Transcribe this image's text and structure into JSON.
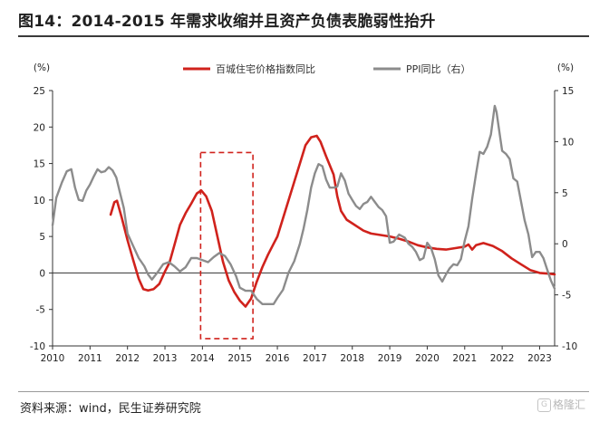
{
  "title": "图14：2014-2015 年需求收缩并且资产负债表脆弱性抬升",
  "source": "资料来源：wind，民生证券研究院",
  "watermark": "格隆汇",
  "chart_data": {
    "type": "line",
    "title": "图14：2014-2015 年需求收缩并且资产负债表脆弱性抬升",
    "x_ticks": [
      "2010",
      "2011",
      "2012",
      "2013",
      "2014",
      "2015",
      "2016",
      "2017",
      "2018",
      "2019",
      "2020",
      "2021",
      "2022",
      "2023"
    ],
    "y_left": {
      "unit": "(%)",
      "range": [
        -10,
        25
      ],
      "ticks": [
        "25",
        "20",
        "15",
        "10",
        "5",
        "0",
        "-5",
        "-10"
      ]
    },
    "y_right": {
      "unit": "(%)",
      "range": [
        -10,
        15
      ],
      "ticks": [
        "15",
        "10",
        "5",
        "0",
        "-5",
        "-10"
      ]
    },
    "series": [
      {
        "name": "百城住宅价格指数同比",
        "axis": "left",
        "color": "#d0221c",
        "points": [
          [
            2011.55,
            8.0
          ],
          [
            2011.65,
            9.7
          ],
          [
            2011.72,
            9.9
          ],
          [
            2011.85,
            7.5
          ],
          [
            2012.0,
            4.5
          ],
          [
            2012.15,
            1.8
          ],
          [
            2012.3,
            -0.8
          ],
          [
            2012.42,
            -2.2
          ],
          [
            2012.55,
            -2.4
          ],
          [
            2012.7,
            -2.2
          ],
          [
            2012.85,
            -1.5
          ],
          [
            2013.0,
            0.2
          ],
          [
            2013.12,
            1.4
          ],
          [
            2013.25,
            3.8
          ],
          [
            2013.4,
            6.6
          ],
          [
            2013.55,
            8.2
          ],
          [
            2013.7,
            9.5
          ],
          [
            2013.85,
            10.9
          ],
          [
            2013.97,
            11.3
          ],
          [
            2014.1,
            10.5
          ],
          [
            2014.25,
            8.5
          ],
          [
            2014.4,
            5.0
          ],
          [
            2014.55,
            1.5
          ],
          [
            2014.7,
            -1.0
          ],
          [
            2014.85,
            -2.6
          ],
          [
            2015.0,
            -3.8
          ],
          [
            2015.15,
            -4.6
          ],
          [
            2015.3,
            -3.5
          ],
          [
            2015.45,
            -1.2
          ],
          [
            2015.6,
            0.8
          ],
          [
            2015.75,
            2.5
          ],
          [
            2015.9,
            4.0
          ],
          [
            2016.0,
            5.0
          ],
          [
            2016.15,
            7.5
          ],
          [
            2016.3,
            10.0
          ],
          [
            2016.45,
            12.5
          ],
          [
            2016.6,
            15.0
          ],
          [
            2016.75,
            17.5
          ],
          [
            2016.9,
            18.6
          ],
          [
            2017.05,
            18.8
          ],
          [
            2017.15,
            18.0
          ],
          [
            2017.3,
            16.0
          ],
          [
            2017.5,
            13.5
          ],
          [
            2017.6,
            10.5
          ],
          [
            2017.7,
            8.5
          ],
          [
            2017.85,
            7.3
          ],
          [
            2018.0,
            6.8
          ],
          [
            2018.15,
            6.3
          ],
          [
            2018.3,
            5.8
          ],
          [
            2018.5,
            5.4
          ],
          [
            2018.75,
            5.2
          ],
          [
            2019.0,
            5.0
          ],
          [
            2019.25,
            4.7
          ],
          [
            2019.5,
            4.3
          ],
          [
            2019.75,
            3.8
          ],
          [
            2020.0,
            3.5
          ],
          [
            2020.25,
            3.3
          ],
          [
            2020.5,
            3.2
          ],
          [
            2020.75,
            3.4
          ],
          [
            2021.0,
            3.6
          ],
          [
            2021.1,
            3.9
          ],
          [
            2021.2,
            3.2
          ],
          [
            2021.3,
            3.8
          ],
          [
            2021.5,
            4.1
          ],
          [
            2021.75,
            3.7
          ],
          [
            2022.0,
            3.0
          ],
          [
            2022.25,
            2.0
          ],
          [
            2022.5,
            1.2
          ],
          [
            2022.75,
            0.4
          ],
          [
            2023.0,
            0.0
          ],
          [
            2023.25,
            -0.1
          ],
          [
            2023.4,
            -0.2
          ]
        ]
      },
      {
        "name": "PPI同比（右）",
        "axis": "right",
        "color": "#8c8c8c",
        "points": [
          [
            2010.0,
            1.8
          ],
          [
            2010.1,
            4.5
          ],
          [
            2010.25,
            6.0
          ],
          [
            2010.38,
            7.1
          ],
          [
            2010.5,
            7.3
          ],
          [
            2010.6,
            5.5
          ],
          [
            2010.7,
            4.3
          ],
          [
            2010.8,
            4.2
          ],
          [
            2010.9,
            5.2
          ],
          [
            2011.0,
            5.8
          ],
          [
            2011.1,
            6.6
          ],
          [
            2011.2,
            7.3
          ],
          [
            2011.3,
            7.0
          ],
          [
            2011.4,
            7.1
          ],
          [
            2011.5,
            7.5
          ],
          [
            2011.6,
            7.2
          ],
          [
            2011.7,
            6.5
          ],
          [
            2011.8,
            5.0
          ],
          [
            2011.9,
            3.5
          ],
          [
            2012.0,
            1.0
          ],
          [
            2012.15,
            -0.2
          ],
          [
            2012.3,
            -1.4
          ],
          [
            2012.45,
            -2.2
          ],
          [
            2012.55,
            -3.0
          ],
          [
            2012.65,
            -3.5
          ],
          [
            2012.8,
            -2.8
          ],
          [
            2012.95,
            -2.0
          ],
          [
            2013.1,
            -1.8
          ],
          [
            2013.25,
            -2.2
          ],
          [
            2013.4,
            -2.7
          ],
          [
            2013.55,
            -2.3
          ],
          [
            2013.7,
            -1.4
          ],
          [
            2013.85,
            -1.4
          ],
          [
            2014.0,
            -1.6
          ],
          [
            2014.15,
            -1.8
          ],
          [
            2014.3,
            -1.3
          ],
          [
            2014.45,
            -0.9
          ],
          [
            2014.6,
            -1.2
          ],
          [
            2014.75,
            -2.0
          ],
          [
            2014.9,
            -3.2
          ],
          [
            2015.0,
            -4.3
          ],
          [
            2015.15,
            -4.6
          ],
          [
            2015.3,
            -4.6
          ],
          [
            2015.45,
            -5.4
          ],
          [
            2015.6,
            -5.9
          ],
          [
            2015.75,
            -5.9
          ],
          [
            2015.9,
            -5.9
          ],
          [
            2016.0,
            -5.3
          ],
          [
            2016.15,
            -4.5
          ],
          [
            2016.3,
            -2.8
          ],
          [
            2016.45,
            -1.7
          ],
          [
            2016.6,
            0.0
          ],
          [
            2016.7,
            1.5
          ],
          [
            2016.8,
            3.3
          ],
          [
            2016.9,
            5.5
          ],
          [
            2017.0,
            6.9
          ],
          [
            2017.1,
            7.8
          ],
          [
            2017.2,
            7.6
          ],
          [
            2017.3,
            6.3
          ],
          [
            2017.4,
            5.5
          ],
          [
            2017.5,
            5.5
          ],
          [
            2017.6,
            5.6
          ],
          [
            2017.7,
            6.9
          ],
          [
            2017.8,
            6.2
          ],
          [
            2017.9,
            4.9
          ],
          [
            2018.0,
            4.3
          ],
          [
            2018.1,
            3.7
          ],
          [
            2018.2,
            3.4
          ],
          [
            2018.3,
            3.9
          ],
          [
            2018.4,
            4.1
          ],
          [
            2018.5,
            4.6
          ],
          [
            2018.6,
            4.1
          ],
          [
            2018.7,
            3.6
          ],
          [
            2018.8,
            3.3
          ],
          [
            2018.9,
            2.7
          ],
          [
            2019.0,
            0.1
          ],
          [
            2019.1,
            0.2
          ],
          [
            2019.25,
            0.9
          ],
          [
            2019.4,
            0.6
          ],
          [
            2019.5,
            0.0
          ],
          [
            2019.6,
            -0.3
          ],
          [
            2019.7,
            -0.8
          ],
          [
            2019.8,
            -1.6
          ],
          [
            2019.9,
            -1.4
          ],
          [
            2020.0,
            0.1
          ],
          [
            2020.1,
            -0.4
          ],
          [
            2020.2,
            -1.5
          ],
          [
            2020.3,
            -3.1
          ],
          [
            2020.4,
            -3.7
          ],
          [
            2020.5,
            -3.0
          ],
          [
            2020.6,
            -2.4
          ],
          [
            2020.7,
            -2.0
          ],
          [
            2020.8,
            -2.1
          ],
          [
            2020.9,
            -1.5
          ],
          [
            2021.0,
            0.3
          ],
          [
            2021.1,
            1.7
          ],
          [
            2021.2,
            4.4
          ],
          [
            2021.3,
            6.8
          ],
          [
            2021.4,
            9.0
          ],
          [
            2021.5,
            8.8
          ],
          [
            2021.6,
            9.5
          ],
          [
            2021.7,
            10.7
          ],
          [
            2021.8,
            13.5
          ],
          [
            2021.85,
            12.9
          ],
          [
            2021.95,
            10.3
          ],
          [
            2022.0,
            9.1
          ],
          [
            2022.1,
            8.8
          ],
          [
            2022.2,
            8.3
          ],
          [
            2022.3,
            6.4
          ],
          [
            2022.4,
            6.1
          ],
          [
            2022.5,
            4.2
          ],
          [
            2022.6,
            2.3
          ],
          [
            2022.7,
            0.9
          ],
          [
            2022.8,
            -1.3
          ],
          [
            2022.9,
            -0.8
          ],
          [
            2023.0,
            -0.8
          ],
          [
            2023.1,
            -1.4
          ],
          [
            2023.2,
            -2.5
          ],
          [
            2023.3,
            -3.6
          ],
          [
            2023.4,
            -4.4
          ]
        ]
      }
    ],
    "highlight": {
      "type": "dashed-box",
      "x_range": [
        2014.0,
        2015.3
      ],
      "y_range": [
        -9,
        16.5
      ],
      "color": "#d0221c"
    },
    "grid": false,
    "legend": "top-center"
  }
}
